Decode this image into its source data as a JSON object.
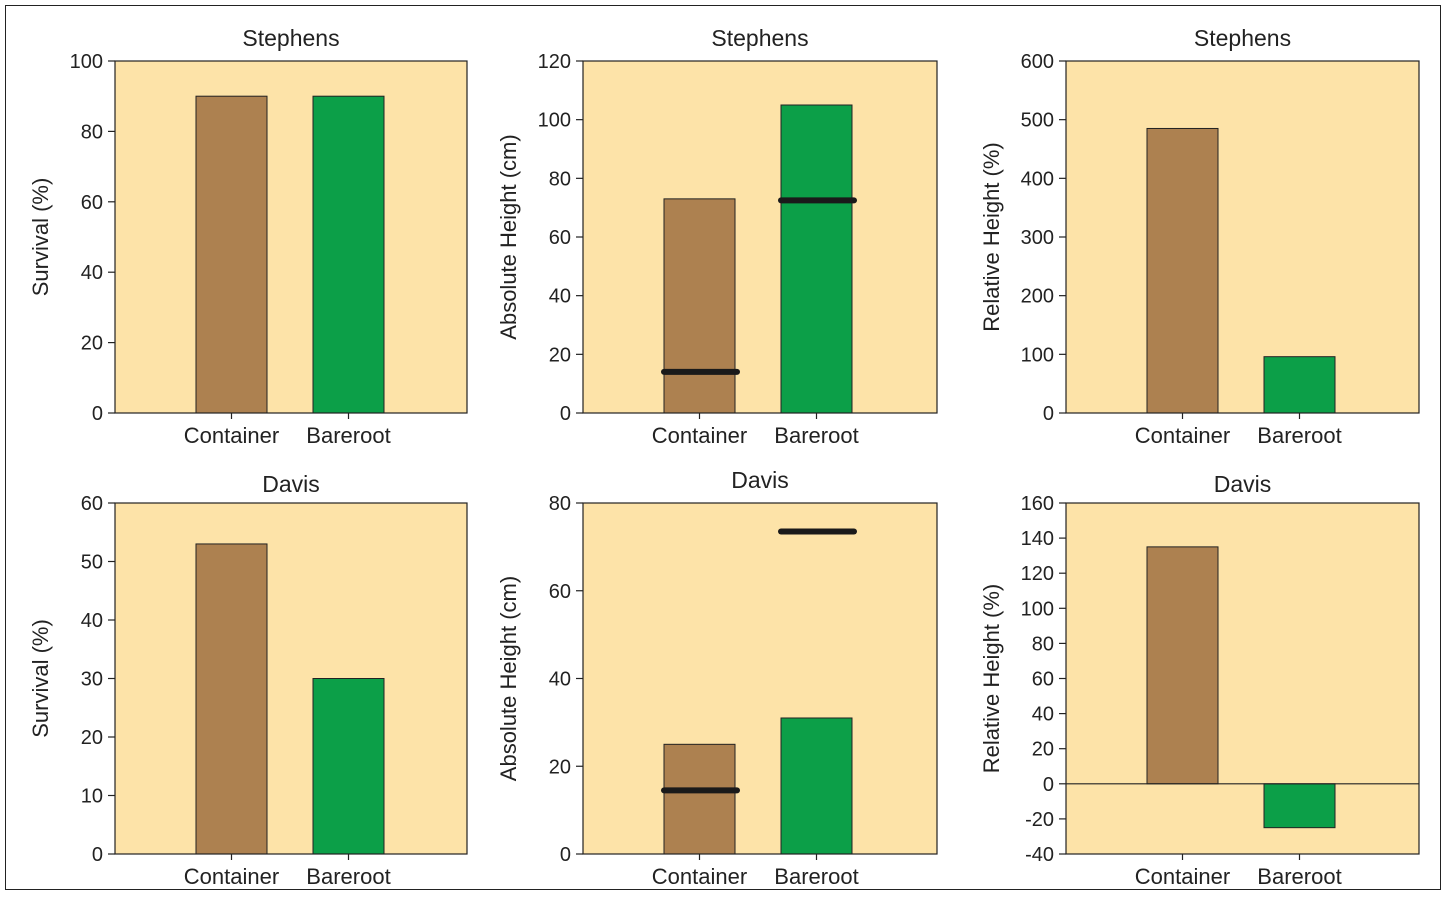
{
  "figure": {
    "colors": {
      "plot_background": "#fde3a8",
      "container": "#ad8150",
      "bareroot": "#0c9f48",
      "initial_marker": "#1a1a1a",
      "outline": "#222222"
    }
  },
  "chart_data": [
    {
      "type": "bar",
      "title": "Stephens",
      "ylabel": "Survival (%)",
      "categories": [
        "Container",
        "Bareroot"
      ],
      "values": [
        90,
        90
      ],
      "ylim": [
        0,
        100
      ],
      "yticks": [
        0,
        20,
        40,
        60,
        80,
        100
      ],
      "grid": false
    },
    {
      "type": "bar",
      "title": "Stephens",
      "ylabel": "Absolute Height (cm)",
      "categories": [
        "Container",
        "Bareroot"
      ],
      "values": [
        73,
        105
      ],
      "markers": [
        14,
        72.5
      ],
      "ylim": [
        0,
        120
      ],
      "yticks": [
        0,
        20,
        40,
        60,
        80,
        100,
        120
      ],
      "grid": false
    },
    {
      "type": "bar",
      "title": "Stephens",
      "ylabel": "Relative Height (%)",
      "categories": [
        "Container",
        "Bareroot"
      ],
      "values": [
        485,
        96
      ],
      "ylim": [
        0,
        600
      ],
      "yticks": [
        0,
        100,
        200,
        300,
        400,
        500,
        600
      ],
      "grid": false
    },
    {
      "type": "bar",
      "title": "Davis",
      "ylabel": "Survival (%)",
      "categories": [
        "Container",
        "Bareroot"
      ],
      "values": [
        53,
        30
      ],
      "ylim": [
        0,
        60
      ],
      "yticks": [
        0,
        10,
        20,
        30,
        40,
        50,
        60
      ],
      "grid": false
    },
    {
      "type": "bar",
      "title": "Davis",
      "ylabel": "Absolute Height (cm)",
      "categories": [
        "Container",
        "Bareroot"
      ],
      "values": [
        25,
        31
      ],
      "markers": [
        14.5,
        73.5
      ],
      "ylim": [
        0,
        80
      ],
      "yticks": [
        0,
        20,
        40,
        60,
        80
      ],
      "grid": false
    },
    {
      "type": "bar",
      "title": "Davis",
      "ylabel": "Relative Height (%)",
      "categories": [
        "Container",
        "Bareroot"
      ],
      "values": [
        135,
        -25
      ],
      "ylim": [
        -40,
        160
      ],
      "yticks": [
        -40,
        -20,
        0,
        20,
        40,
        60,
        80,
        100,
        120,
        140,
        160
      ],
      "zero_line": true,
      "grid": false
    }
  ]
}
